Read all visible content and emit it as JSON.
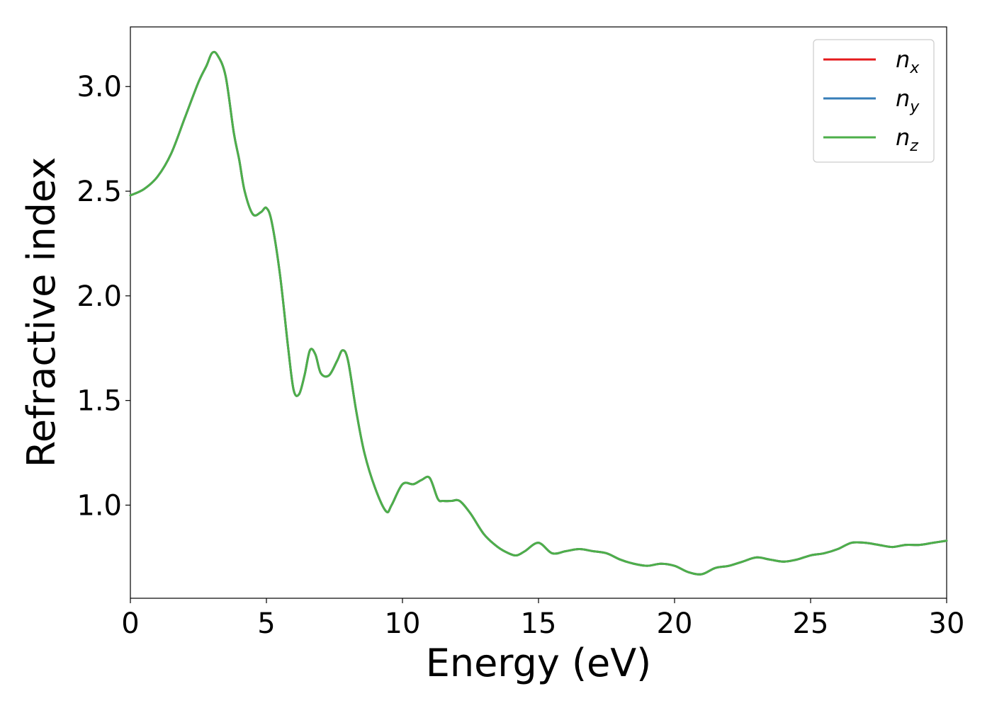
{
  "chart_data": {
    "type": "line",
    "title": "",
    "xlabel": "Energy (eV)",
    "ylabel": "Refractive index",
    "xlim": [
      0,
      30
    ],
    "ylim": [
      0.555,
      3.285
    ],
    "xticks": [
      0,
      5,
      10,
      15,
      20,
      25,
      30
    ],
    "xtick_labels": [
      "0",
      "5",
      "10",
      "15",
      "20",
      "25",
      "30"
    ],
    "yticks": [
      1.0,
      1.5,
      2.0,
      2.5,
      3.0
    ],
    "ytick_labels": [
      "1.0",
      "1.5",
      "2.0",
      "2.5",
      "3.0"
    ],
    "grid": false,
    "legend_position": "top-right",
    "x": [
      0,
      0.5,
      1.0,
      1.5,
      2.0,
      2.5,
      2.8,
      3.0,
      3.2,
      3.5,
      3.8,
      4.0,
      4.2,
      4.5,
      4.8,
      5.0,
      5.2,
      5.5,
      5.8,
      6.0,
      6.2,
      6.4,
      6.6,
      6.8,
      7.0,
      7.3,
      7.6,
      7.8,
      8.0,
      8.3,
      8.6,
      9.0,
      9.4,
      9.6,
      10.0,
      10.4,
      10.7,
      11.0,
      11.3,
      11.5,
      11.8,
      12.1,
      12.5,
      13.0,
      13.5,
      13.9,
      14.2,
      14.5,
      15.0,
      15.5,
      16.0,
      16.5,
      17.0,
      17.5,
      18.0,
      18.5,
      19.0,
      19.5,
      20.0,
      20.5,
      21.0,
      21.5,
      22.0,
      22.5,
      23.0,
      23.5,
      24.0,
      24.5,
      25.0,
      25.5,
      26.0,
      26.5,
      27.0,
      27.5,
      28.0,
      28.5,
      29.0,
      29.5,
      30.0
    ],
    "series": [
      {
        "name": "n_x",
        "color": "#e41a1c",
        "values": [
          2.48,
          2.51,
          2.57,
          2.68,
          2.85,
          3.02,
          3.1,
          3.16,
          3.15,
          3.05,
          2.78,
          2.65,
          2.5,
          2.39,
          2.4,
          2.42,
          2.35,
          2.1,
          1.75,
          1.55,
          1.53,
          1.62,
          1.74,
          1.72,
          1.63,
          1.62,
          1.69,
          1.74,
          1.69,
          1.45,
          1.25,
          1.08,
          0.97,
          1.0,
          1.1,
          1.1,
          1.12,
          1.13,
          1.03,
          1.02,
          1.02,
          1.02,
          0.96,
          0.86,
          0.8,
          0.77,
          0.76,
          0.78,
          0.82,
          0.77,
          0.78,
          0.79,
          0.78,
          0.77,
          0.74,
          0.72,
          0.71,
          0.72,
          0.71,
          0.68,
          0.67,
          0.7,
          0.71,
          0.73,
          0.75,
          0.74,
          0.73,
          0.74,
          0.76,
          0.77,
          0.79,
          0.82,
          0.82,
          0.81,
          0.8,
          0.81,
          0.81,
          0.82,
          0.83
        ]
      },
      {
        "name": "n_y",
        "color": "#377eb8",
        "values": [
          2.48,
          2.51,
          2.57,
          2.68,
          2.85,
          3.02,
          3.1,
          3.16,
          3.15,
          3.05,
          2.78,
          2.65,
          2.5,
          2.39,
          2.4,
          2.42,
          2.35,
          2.1,
          1.75,
          1.55,
          1.53,
          1.62,
          1.74,
          1.72,
          1.63,
          1.62,
          1.69,
          1.74,
          1.69,
          1.45,
          1.25,
          1.08,
          0.97,
          1.0,
          1.1,
          1.1,
          1.12,
          1.13,
          1.03,
          1.02,
          1.02,
          1.02,
          0.96,
          0.86,
          0.8,
          0.77,
          0.76,
          0.78,
          0.82,
          0.77,
          0.78,
          0.79,
          0.78,
          0.77,
          0.74,
          0.72,
          0.71,
          0.72,
          0.71,
          0.68,
          0.67,
          0.7,
          0.71,
          0.73,
          0.75,
          0.74,
          0.73,
          0.74,
          0.76,
          0.77,
          0.79,
          0.82,
          0.82,
          0.81,
          0.8,
          0.81,
          0.81,
          0.82,
          0.83
        ]
      },
      {
        "name": "n_z",
        "color": "#4daf4a",
        "values": [
          2.48,
          2.51,
          2.57,
          2.68,
          2.85,
          3.02,
          3.1,
          3.16,
          3.15,
          3.05,
          2.78,
          2.65,
          2.5,
          2.39,
          2.4,
          2.42,
          2.35,
          2.1,
          1.75,
          1.55,
          1.53,
          1.62,
          1.74,
          1.72,
          1.63,
          1.62,
          1.69,
          1.74,
          1.69,
          1.45,
          1.25,
          1.08,
          0.97,
          1.0,
          1.1,
          1.1,
          1.12,
          1.13,
          1.03,
          1.02,
          1.02,
          1.02,
          0.96,
          0.86,
          0.8,
          0.77,
          0.76,
          0.78,
          0.82,
          0.77,
          0.78,
          0.79,
          0.78,
          0.77,
          0.74,
          0.72,
          0.71,
          0.72,
          0.71,
          0.68,
          0.67,
          0.7,
          0.71,
          0.73,
          0.75,
          0.74,
          0.73,
          0.74,
          0.76,
          0.77,
          0.79,
          0.82,
          0.82,
          0.81,
          0.8,
          0.81,
          0.81,
          0.82,
          0.83
        ]
      }
    ],
    "legend": [
      {
        "base": "n",
        "sub": "x",
        "color": "#e41a1c"
      },
      {
        "base": "n",
        "sub": "y",
        "color": "#377eb8"
      },
      {
        "base": "n",
        "sub": "z",
        "color": "#4daf4a"
      }
    ]
  }
}
